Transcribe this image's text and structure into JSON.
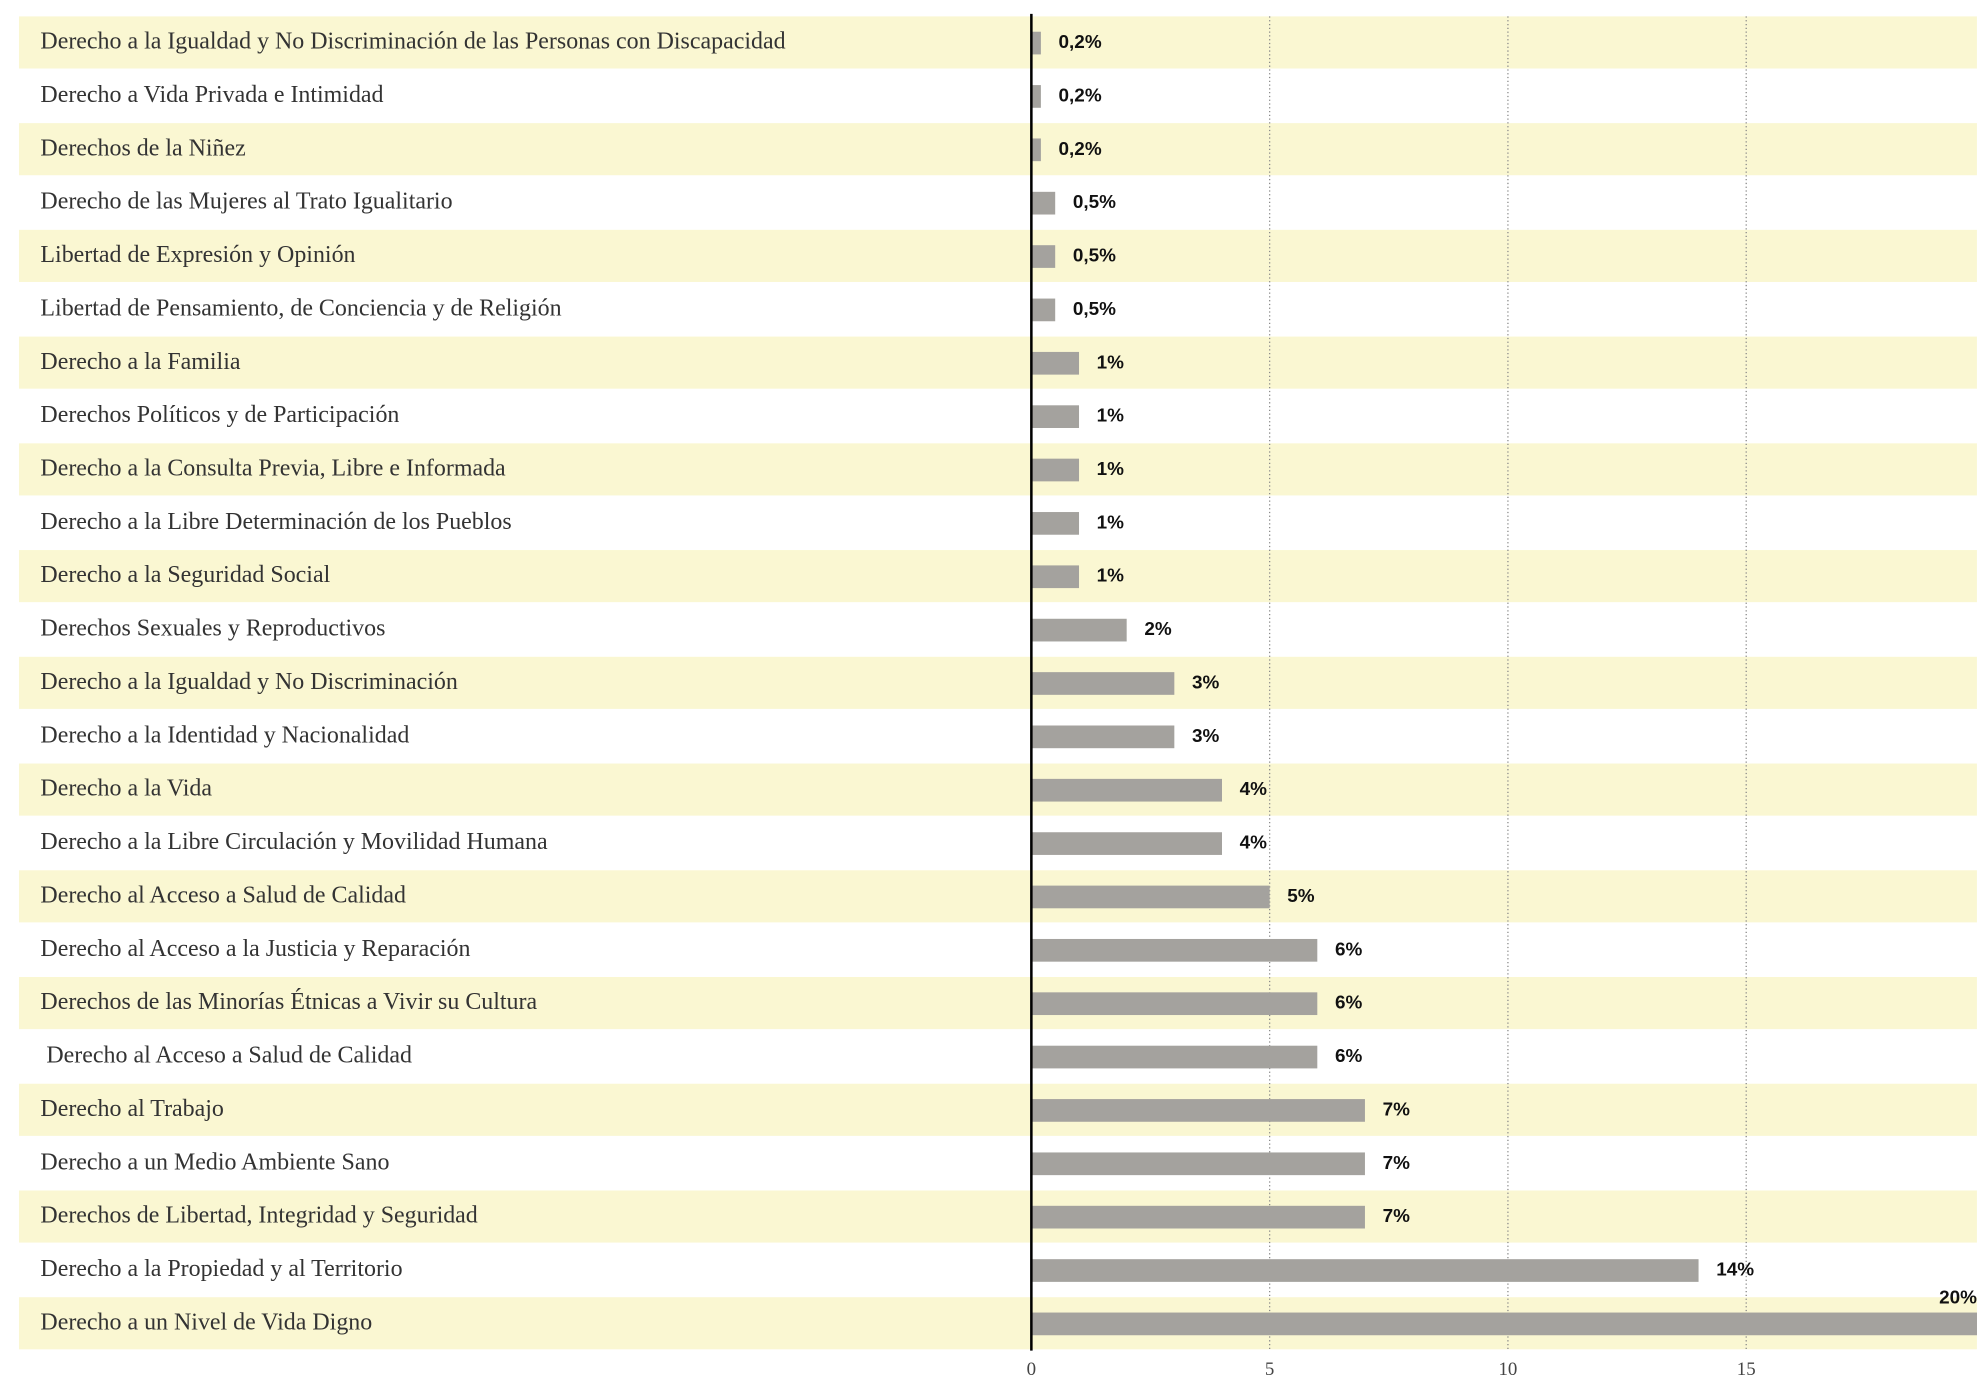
{
  "chart_data": {
    "type": "barh",
    "categories": [
      "Derecho a la Igualdad y No Discriminación de las Personas con Discapacidad",
      "Derecho a Vida Privada e Intimidad",
      "Derechos de la Niñez",
      "Derecho de las Mujeres al Trato Igualitario",
      "Libertad de Expresión y Opinión",
      "Libertad de Pensamiento, de Conciencia y de Religión",
      "Derecho a la Familia",
      "Derechos Políticos y de Participación",
      "Derecho a la Consulta Previa, Libre e Informada",
      "Derecho a la Libre Determinación de los Pueblos",
      "Derecho a la Seguridad Social",
      "Derechos Sexuales y Reproductivos",
      "Derecho a la Igualdad y No Discriminación",
      "Derecho a la Identidad y Nacionalidad",
      "Derecho a la Vida",
      "Derecho a la Libre Circulación y Movilidad Humana",
      "Derecho al Acceso a Salud de Calidad",
      "Derecho al Acceso a la Justicia y Reparación",
      "Derechos de las Minorías Étnicas a Vivir su Cultura",
      " Derecho al Acceso a Salud de Calidad",
      "Derecho al Trabajo",
      "Derecho a un Medio Ambiente Sano",
      "Derechos de Libertad, Integridad y Seguridad",
      "Derecho a la Propiedad y al Territorio",
      "Derecho a un Nivel de Vida Digno"
    ],
    "values": [
      0.2,
      0.2,
      0.2,
      0.5,
      0.5,
      0.5,
      1,
      1,
      1,
      1,
      1,
      2,
      3,
      3,
      4,
      4,
      5,
      6,
      6,
      6,
      7,
      7,
      7,
      14,
      20
    ],
    "value_labels": [
      "0,2%",
      "0,2%",
      "0,2%",
      "0,5%",
      "0,5%",
      "0,5%",
      "1%",
      "1%",
      "1%",
      "1%",
      "1%",
      "2%",
      "3%",
      "3%",
      "4%",
      "4%",
      "5%",
      "6%",
      "6%",
      "6%",
      "7%",
      "7%",
      "7%",
      "14%",
      "20%"
    ],
    "color": "#a4a29e",
    "band_color": "#faf7d2",
    "xlim": [
      0,
      20
    ],
    "xticks": [
      0,
      5,
      10,
      15
    ],
    "grid": true
  }
}
